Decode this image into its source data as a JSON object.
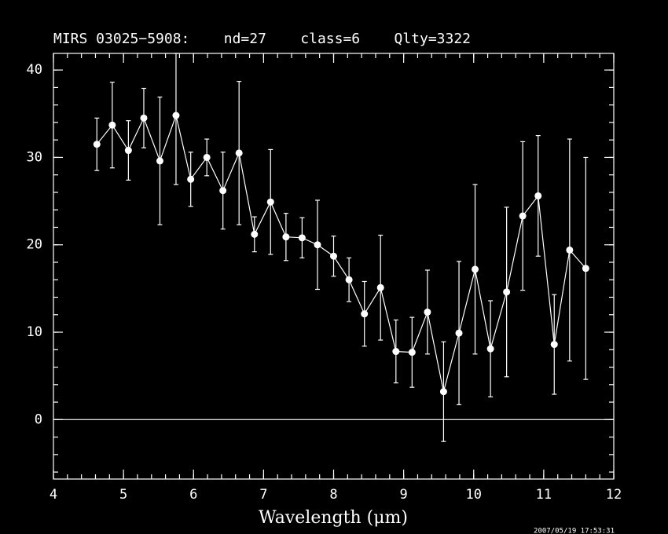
{
  "chart_data": {
    "type": "errorbar",
    "title": "MIRS 03025−5908:    nd=27    class=6    Qlty=3322",
    "x_label": "Wavelength (μm)",
    "timestamp": "2007/05/19 17:53:31",
    "xlim": [
      4,
      12
    ],
    "xticks": [
      4,
      5,
      6,
      7,
      8,
      9,
      10,
      11,
      12
    ],
    "x_minor_step": 0.2,
    "ylim": [
      -6.8,
      41.9
    ],
    "yticks": [
      0,
      10,
      20,
      30,
      40
    ],
    "y_minor_step": 2,
    "zero_line": 0,
    "color": "#ffffff",
    "series": [
      {
        "name": "MIRS 03025-5908",
        "x": [
          4.62,
          4.84,
          5.07,
          5.29,
          5.52,
          5.75,
          5.96,
          6.19,
          6.42,
          6.65,
          6.87,
          7.1,
          7.32,
          7.55,
          7.77,
          8.0,
          8.22,
          8.44,
          8.67,
          8.89,
          9.12,
          9.34,
          9.57,
          9.79,
          10.02,
          10.24,
          10.47,
          10.7,
          10.92,
          11.15,
          11.37,
          11.6
        ],
        "values": [
          31.5,
          33.7,
          30.8,
          34.5,
          29.6,
          34.8,
          27.5,
          30.0,
          26.2,
          30.5,
          21.2,
          24.9,
          20.9,
          20.8,
          20.0,
          18.7,
          16.0,
          12.1,
          15.1,
          7.8,
          7.7,
          12.3,
          3.2,
          9.9,
          17.2,
          8.1,
          14.6,
          23.3,
          25.6,
          8.6,
          19.4,
          17.3
        ],
        "errors": [
          3.0,
          4.9,
          3.4,
          3.4,
          7.3,
          7.9,
          3.1,
          2.1,
          4.4,
          8.2,
          2.0,
          6.0,
          2.7,
          2.3,
          5.1,
          2.3,
          2.5,
          3.7,
          6.0,
          3.6,
          4.0,
          4.8,
          5.7,
          8.2,
          9.7,
          5.5,
          9.7,
          8.5,
          6.9,
          5.7,
          12.7,
          12.7
        ]
      }
    ]
  }
}
